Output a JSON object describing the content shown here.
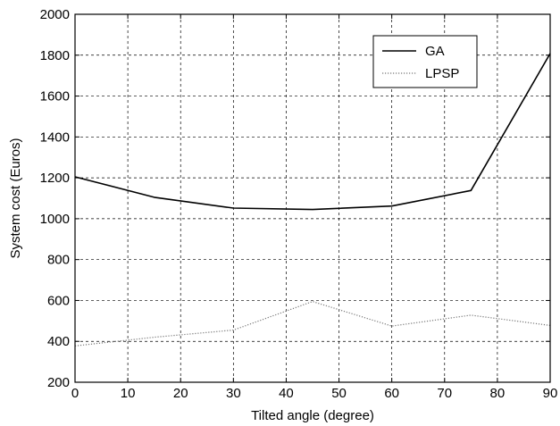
{
  "chart_data": {
    "type": "line",
    "title": "",
    "xlabel": "Tilted angle (degree)",
    "ylabel": "System cost (Euros)",
    "xlim": [
      0,
      90
    ],
    "ylim": [
      200,
      2000
    ],
    "xticks": [
      0,
      10,
      20,
      30,
      40,
      50,
      60,
      70,
      80,
      90
    ],
    "yticks": [
      200,
      400,
      600,
      800,
      1000,
      1200,
      1400,
      1600,
      1800,
      2000
    ],
    "xtick_labels": [
      "0",
      "10",
      "20",
      "30",
      "40",
      "50",
      "60",
      "70",
      "80",
      "90"
    ],
    "ytick_labels": [
      "200",
      "400",
      "600",
      "800",
      "1000",
      "1200",
      "1400",
      "1600",
      "1800",
      "2000"
    ],
    "grid": true,
    "legend_position": "top-right",
    "series": [
      {
        "name": "GA",
        "style": "solid",
        "color": "#000000",
        "x": [
          0,
          15,
          30,
          45,
          60,
          75,
          90
        ],
        "y": [
          1205,
          1105,
          1052,
          1045,
          1062,
          1138,
          1808
        ]
      },
      {
        "name": "LPSP",
        "style": "dotted",
        "color": "#777777",
        "x": [
          0,
          15,
          30,
          45,
          60,
          75,
          90
        ],
        "y": [
          378,
          420,
          455,
          595,
          475,
          528,
          478
        ]
      }
    ]
  }
}
